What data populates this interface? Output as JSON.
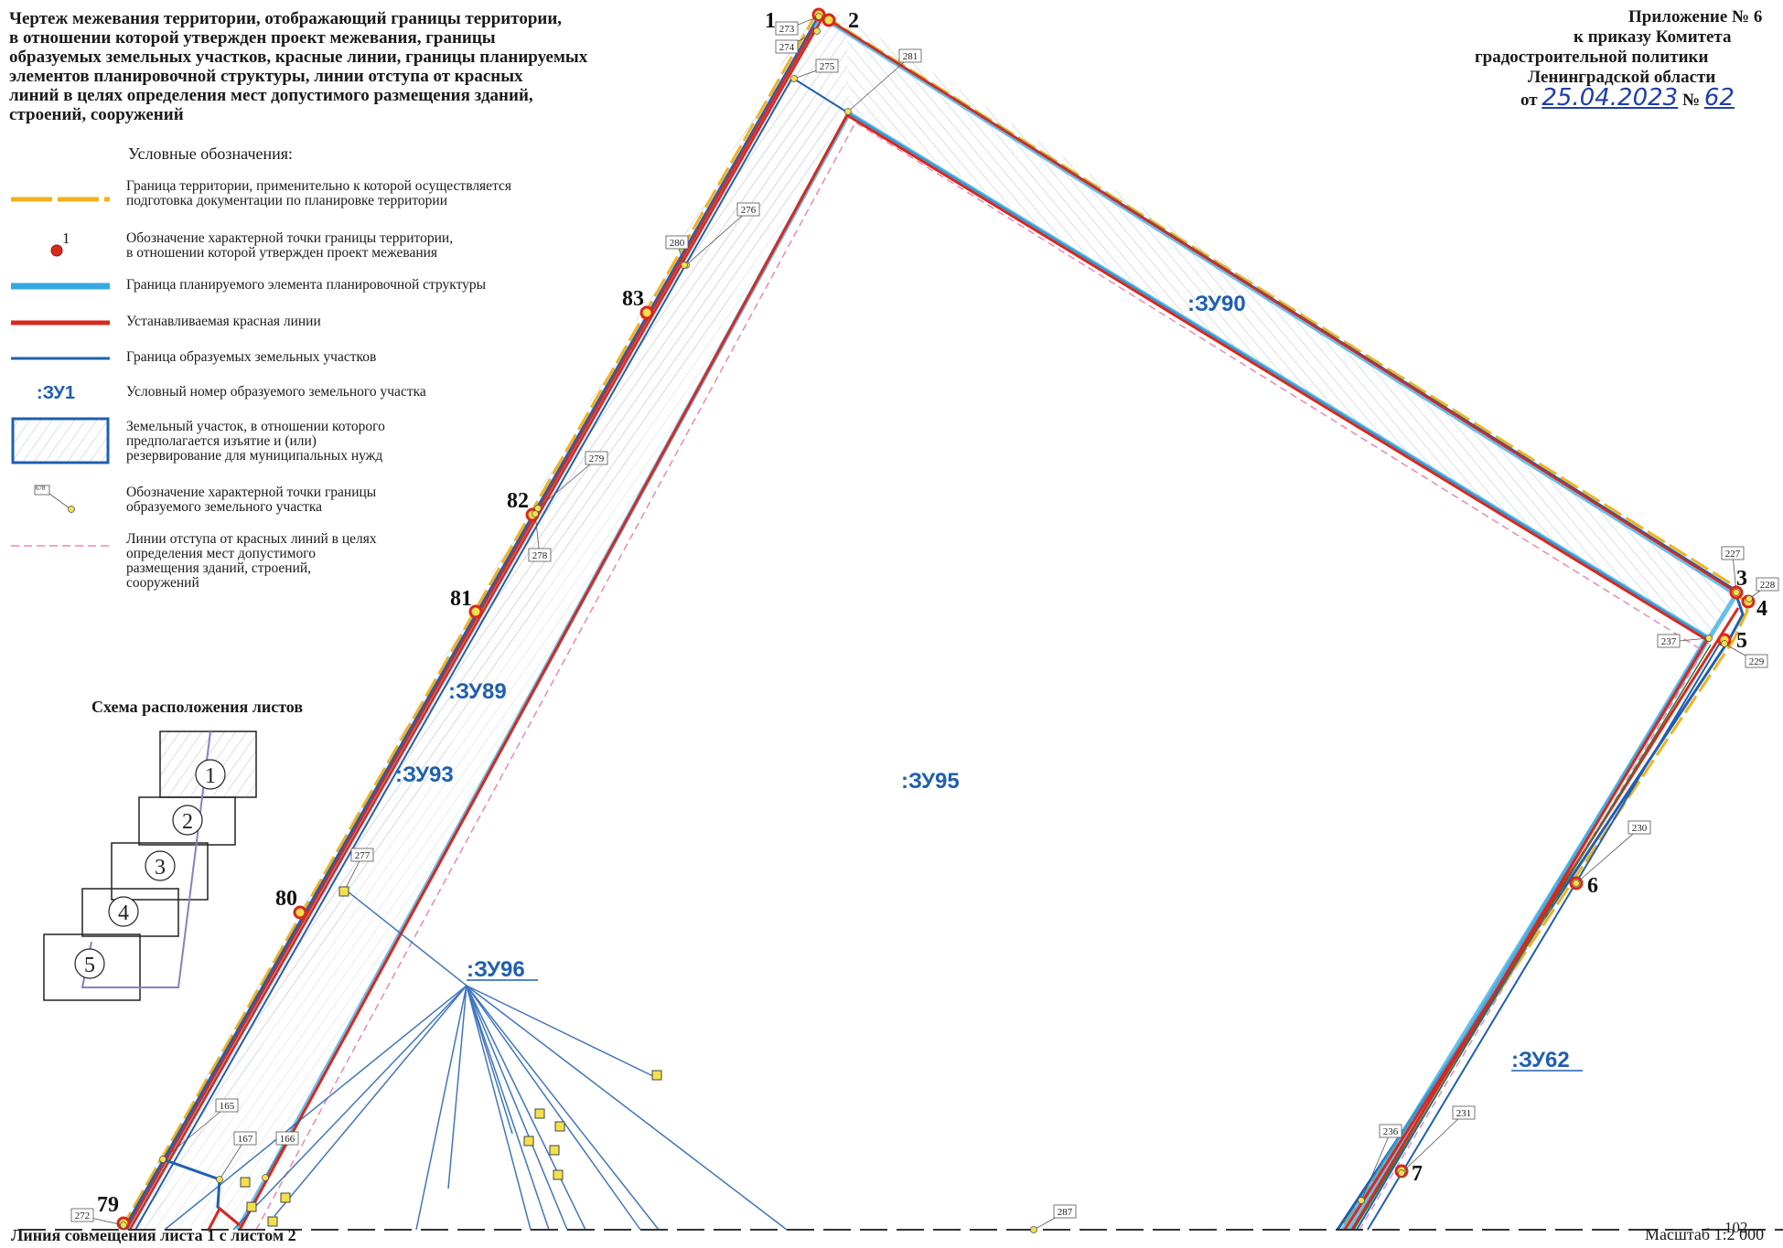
{
  "title_lines": [
    "Чертеж межевания территории, отображающий границы территории,",
    "в отношении которой утвержден проект межевания, границы",
    "образуемых земельных участков, красные линии, границы планируемых",
    "элементов планировочной структуры, линии отступа от красных",
    "линий в целях определения мест допустимого размещения зданий,",
    "строений, сооружений"
  ],
  "appendix": {
    "line1": "Приложение № 6",
    "line2": "к приказу  Комитета",
    "line3": "градостроительной политики",
    "line4": "Ленинградской области",
    "date_prefix": "от",
    "date": "25.04.2023",
    "num_prefix": "№",
    "num": "62"
  },
  "legend": {
    "heading": "Условные обозначения:",
    "items": [
      {
        "lines": [
          "Граница территории, применительно к которой осуществляется",
          "подготовка документации по планировке территории"
        ],
        "symbol": "orange-dash-line",
        "color": "#f2b21a"
      },
      {
        "lines": [
          "Обозначение характерной точки границы территории,",
          "в отношении которой утвержден проект межевания"
        ],
        "symbol": "red-point",
        "color": "#d9281e",
        "sample_label": "1"
      },
      {
        "lines": [
          "Граница планируемого элемента планировочной структуры"
        ],
        "symbol": "cyan-line",
        "color": "#36a9e1"
      },
      {
        "lines": [
          "Устанавливаемая красная линии"
        ],
        "symbol": "red-line",
        "color": "#d9281e"
      },
      {
        "lines": [
          "Граница образуемых земельных участков"
        ],
        "symbol": "blue-line",
        "color": "#1f5fb0"
      },
      {
        "lines": [
          "Условный номер образуемого земельного участка"
        ],
        "symbol": "zu-label",
        "sample_label": ":ЗУ1"
      },
      {
        "lines": [
          "Земельный участок, в отношении которого",
          "предполагается изъятие и (или)",
          "резервирование для муниципальных нужд"
        ],
        "symbol": "hatched-box"
      },
      {
        "lines": [
          "Обозначение характерной точки границы",
          "образуемого земельного участка"
        ],
        "symbol": "yellow-point",
        "sample_label": "678"
      },
      {
        "lines": [
          "Линии отступа от красных линий в целях",
          "определения мест допустимого",
          "размещения зданий, строений,",
          "сооружений"
        ],
        "symbol": "pink-dash-line",
        "color": "#e889b8"
      }
    ]
  },
  "schema": {
    "title": "Схема расположения листов",
    "sheets": [
      "1",
      "2",
      "3",
      "4",
      "5"
    ]
  },
  "plots": [
    {
      "id": "zu90",
      "label": ":ЗУ90"
    },
    {
      "id": "zu89",
      "label": ":ЗУ89"
    },
    {
      "id": "zu93",
      "label": ":ЗУ93"
    },
    {
      "id": "zu95",
      "label": ":ЗУ95"
    },
    {
      "id": "zu96",
      "label": ":ЗУ96"
    },
    {
      "id": "zu62",
      "label": ":ЗУ62"
    }
  ],
  "boundary_points": [
    "1",
    "2",
    "3",
    "4",
    "5",
    "6",
    "7",
    "79",
    "80",
    "81",
    "82",
    "83"
  ],
  "parcel_points": [
    "273",
    "274",
    "275",
    "281",
    "276",
    "280",
    "279",
    "278",
    "277",
    "227",
    "228",
    "237",
    "229",
    "230",
    "231",
    "236",
    "287",
    "165",
    "167",
    "166",
    "272"
  ],
  "footer": {
    "combination_line": "Линия совмещения листа 1 с листом 2",
    "scale": "Масштаб 1:2 000",
    "page_number": "102"
  },
  "colors": {
    "territory_border": "#f2b21a",
    "red_line": "#d9281e",
    "planning_element": "#36a9e1",
    "parcel_border": "#1f5fb0",
    "setback_line": "#e889b8",
    "point_fill": "#f4e04d"
  }
}
